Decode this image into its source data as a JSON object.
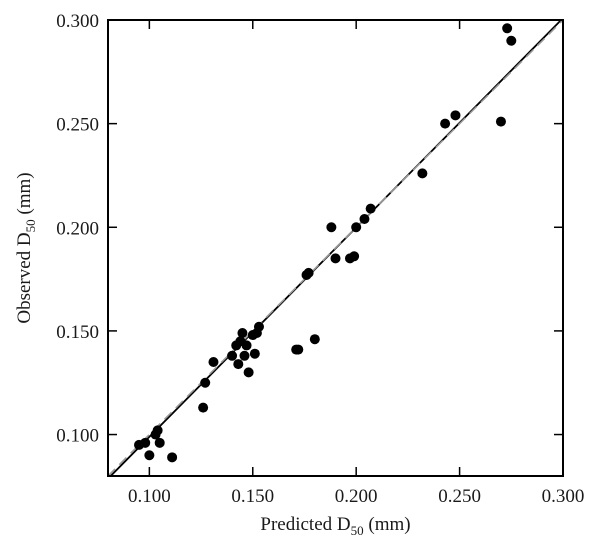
{
  "chart_data": {
    "type": "scatter",
    "title": "",
    "xlabel": {
      "main": "Predicted D",
      "sub": "50",
      "unit": " (mm)"
    },
    "ylabel": {
      "main": "Observed D",
      "sub": "50",
      "unit": " (mm)"
    },
    "xlim": [
      0.08,
      0.3
    ],
    "ylim": [
      0.08,
      0.3
    ],
    "x_ticks": [
      0.1,
      0.15,
      0.2,
      0.25,
      0.3
    ],
    "y_ticks": [
      0.1,
      0.15,
      0.2,
      0.25,
      0.3
    ],
    "x_tick_labels": [
      "0.100",
      "0.150",
      "0.200",
      "0.250",
      "0.300"
    ],
    "y_tick_labels": [
      "0.100",
      "0.150",
      "0.200",
      "0.250",
      "0.300"
    ],
    "grid": false,
    "legend": "none",
    "marker_color": "#000000",
    "series": [
      {
        "points": [
          {
            "x": 0.095,
            "y": 0.095
          },
          {
            "x": 0.098,
            "y": 0.096
          },
          {
            "x": 0.1,
            "y": 0.09
          },
          {
            "x": 0.103,
            "y": 0.1
          },
          {
            "x": 0.104,
            "y": 0.102
          },
          {
            "x": 0.105,
            "y": 0.096
          },
          {
            "x": 0.111,
            "y": 0.089
          },
          {
            "x": 0.126,
            "y": 0.113
          },
          {
            "x": 0.127,
            "y": 0.125
          },
          {
            "x": 0.131,
            "y": 0.135
          },
          {
            "x": 0.14,
            "y": 0.138
          },
          {
            "x": 0.142,
            "y": 0.143
          },
          {
            "x": 0.143,
            "y": 0.134
          },
          {
            "x": 0.144,
            "y": 0.145
          },
          {
            "x": 0.145,
            "y": 0.149
          },
          {
            "x": 0.146,
            "y": 0.138
          },
          {
            "x": 0.147,
            "y": 0.143
          },
          {
            "x": 0.148,
            "y": 0.13
          },
          {
            "x": 0.15,
            "y": 0.148
          },
          {
            "x": 0.151,
            "y": 0.139
          },
          {
            "x": 0.152,
            "y": 0.149
          },
          {
            "x": 0.153,
            "y": 0.152
          },
          {
            "x": 0.171,
            "y": 0.141
          },
          {
            "x": 0.172,
            "y": 0.141
          },
          {
            "x": 0.176,
            "y": 0.177
          },
          {
            "x": 0.177,
            "y": 0.178
          },
          {
            "x": 0.18,
            "y": 0.146
          },
          {
            "x": 0.188,
            "y": 0.2
          },
          {
            "x": 0.19,
            "y": 0.185
          },
          {
            "x": 0.197,
            "y": 0.185
          },
          {
            "x": 0.199,
            "y": 0.186
          },
          {
            "x": 0.2,
            "y": 0.2
          },
          {
            "x": 0.204,
            "y": 0.204
          },
          {
            "x": 0.207,
            "y": 0.209
          },
          {
            "x": 0.232,
            "y": 0.226
          },
          {
            "x": 0.243,
            "y": 0.25
          },
          {
            "x": 0.248,
            "y": 0.254
          },
          {
            "x": 0.27,
            "y": 0.251
          },
          {
            "x": 0.273,
            "y": 0.296
          },
          {
            "x": 0.275,
            "y": 0.29
          }
        ]
      }
    ],
    "reference_lines": [
      {
        "style": "solid",
        "color": "#000000",
        "from": [
          0.08,
          0.0787
        ],
        "to": [
          0.3,
          0.3009
        ]
      },
      {
        "style": "dashed",
        "color": "#999999",
        "from": [
          0.08,
          0.08
        ],
        "to": [
          0.3,
          0.3
        ]
      }
    ]
  }
}
